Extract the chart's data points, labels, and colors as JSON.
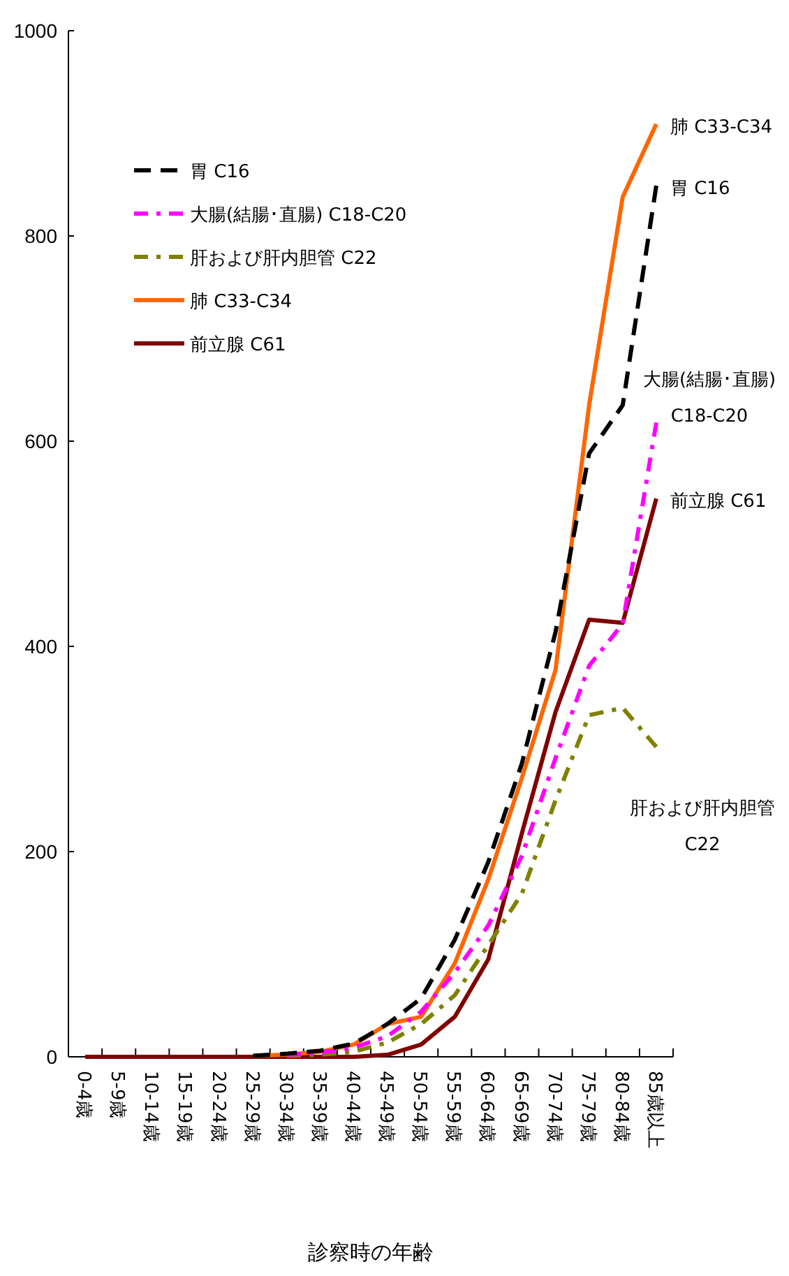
{
  "chart_data": {
    "type": "line",
    "xlabel": "診察時の年齢",
    "categories": [
      "0-4歳",
      "5-9歳",
      "10-14歳",
      "15-19歳",
      "20-24歳",
      "25-29歳",
      "30-34歳",
      "35-39歳",
      "40-44歳",
      "45-49歳",
      "50-54歳",
      "55-59歳",
      "60-64歳",
      "65-69歳",
      "70-74歳",
      "75-79歳",
      "80-84歳",
      "85歳以上"
    ],
    "ylim": [
      0,
      1000
    ],
    "yticks": [
      0,
      200,
      400,
      600,
      800,
      1000
    ],
    "grid": false,
    "legend": "top left",
    "marker": "none",
    "series": [
      {
        "name": "胃 C16",
        "color": "#000000",
        "line_style": "dashed",
        "values": [
          null,
          null,
          null,
          null,
          null,
          1,
          3,
          6,
          13,
          32,
          57,
          114,
          190,
          286,
          414,
          588,
          635,
          849
        ]
      },
      {
        "name": "大腸(結腸･直腸) C18-C20",
        "color": "#ff00ff",
        "line_style": "dashdot",
        "values": [
          null,
          null,
          null,
          null,
          null,
          null,
          2,
          4,
          9,
          20,
          44,
          82,
          128,
          196,
          291,
          381,
          422,
          618
        ]
      },
      {
        "name": "肝および肝内胆管 C22",
        "color": "#808000",
        "line_style": "dashdot",
        "values": [
          null,
          null,
          null,
          null,
          null,
          null,
          1,
          2,
          5,
          14,
          32,
          60,
          109,
          159,
          250,
          333,
          340,
          302
        ]
      },
      {
        "name": "肺 C33-C34",
        "color": "#ff6600",
        "line_style": "solid",
        "values": [
          null,
          null,
          null,
          null,
          null,
          1,
          2,
          5,
          12,
          32,
          39,
          91,
          173,
          272,
          377,
          635,
          838,
          909
        ]
      },
      {
        "name": "前立腺 C61",
        "color": "#800000",
        "line_style": "solid",
        "values": [
          0,
          0,
          0,
          0,
          0,
          0,
          0,
          0,
          0,
          2,
          12,
          39,
          95,
          218,
          336,
          426,
          423,
          544
        ]
      }
    ],
    "annotations": [
      {
        "text": "肺 C33-C34",
        "x": "85歳以上",
        "y": 909
      },
      {
        "text": "胃 C16",
        "x": "85歳以上",
        "y": 849
      },
      {
        "text": "大腸(結腸･直腸)\nC18-C20",
        "x": "85歳以上",
        "y": 618
      },
      {
        "text": "前立腺 C61",
        "x": "85歳以上",
        "y": 544
      },
      "肝および肝内胆管\nC22"
    ]
  }
}
